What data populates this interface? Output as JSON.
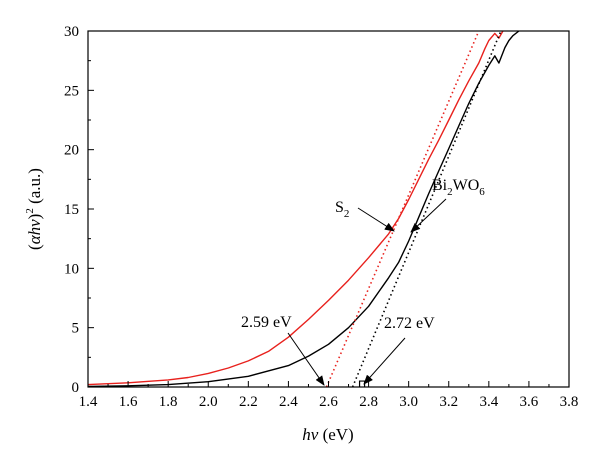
{
  "chart_data": {
    "type": "line",
    "title": "",
    "xlabel": "hν (eV)",
    "ylabel": "(αhν)² (a.u.)",
    "xlim": [
      1.4,
      3.8
    ],
    "ylim": [
      0,
      30
    ],
    "x_ticks": [
      "1.4",
      "1.6",
      "1.8",
      "2.0",
      "2.2",
      "2.4",
      "2.6",
      "2.8",
      "3.0",
      "3.2",
      "3.4",
      "3.6",
      "3.8"
    ],
    "y_ticks": [
      "0",
      "5",
      "10",
      "15",
      "20",
      "25",
      "30"
    ],
    "grid": false,
    "legend": "none",
    "series": [
      {
        "name": "S₂",
        "color": "#e8211d",
        "style": "solid",
        "x": [
          1.4,
          1.6,
          1.8,
          1.9,
          2.0,
          2.1,
          2.2,
          2.3,
          2.4,
          2.5,
          2.6,
          2.7,
          2.8,
          2.9,
          2.95,
          3.0,
          3.05,
          3.1,
          3.15,
          3.2,
          3.25,
          3.3,
          3.35,
          3.38,
          3.4,
          3.43,
          3.45,
          3.47
        ],
        "y": [
          0.2,
          0.35,
          0.6,
          0.8,
          1.15,
          1.6,
          2.2,
          3.0,
          4.2,
          5.7,
          7.3,
          9.0,
          10.9,
          12.9,
          14.2,
          15.8,
          17.5,
          19.2,
          20.8,
          22.5,
          24.2,
          25.8,
          27.3,
          28.5,
          29.2,
          29.8,
          29.4,
          30.0
        ]
      },
      {
        "name": "Bi₂WO₆",
        "color": "#000000",
        "style": "solid",
        "x": [
          1.4,
          1.6,
          1.8,
          2.0,
          2.2,
          2.4,
          2.5,
          2.6,
          2.7,
          2.8,
          2.9,
          2.95,
          3.0,
          3.05,
          3.1,
          3.15,
          3.2,
          3.25,
          3.3,
          3.35,
          3.4,
          3.43,
          3.45,
          3.48,
          3.5,
          3.52,
          3.55
        ],
        "y": [
          0.05,
          0.1,
          0.2,
          0.45,
          0.9,
          1.8,
          2.6,
          3.6,
          5.0,
          6.8,
          9.2,
          10.5,
          12.3,
          14.3,
          16.3,
          18.2,
          20.1,
          22.0,
          23.9,
          25.6,
          27.1,
          27.9,
          27.3,
          28.6,
          29.2,
          29.6,
          30.0
        ]
      },
      {
        "name": "S₂ tangent",
        "color": "#e8211d",
        "style": "dotted",
        "x": [
          2.59,
          3.35
        ],
        "y": [
          0,
          30
        ]
      },
      {
        "name": "Bi₂WO₆ tangent",
        "color": "#000000",
        "style": "dotted",
        "x": [
          2.72,
          3.46
        ],
        "y": [
          0,
          30
        ]
      }
    ],
    "annotations": [
      {
        "text": "S₂",
        "arrow_to": [
          2.93,
          13.1
        ]
      },
      {
        "text": "Bi₂WO₆",
        "arrow_to": [
          3.02,
          13.2
        ]
      },
      {
        "text": "2.59 eV",
        "arrow_to": [
          2.59,
          0
        ]
      },
      {
        "text": "2.72 eV",
        "arrow_to": [
          2.72,
          0
        ]
      }
    ]
  }
}
